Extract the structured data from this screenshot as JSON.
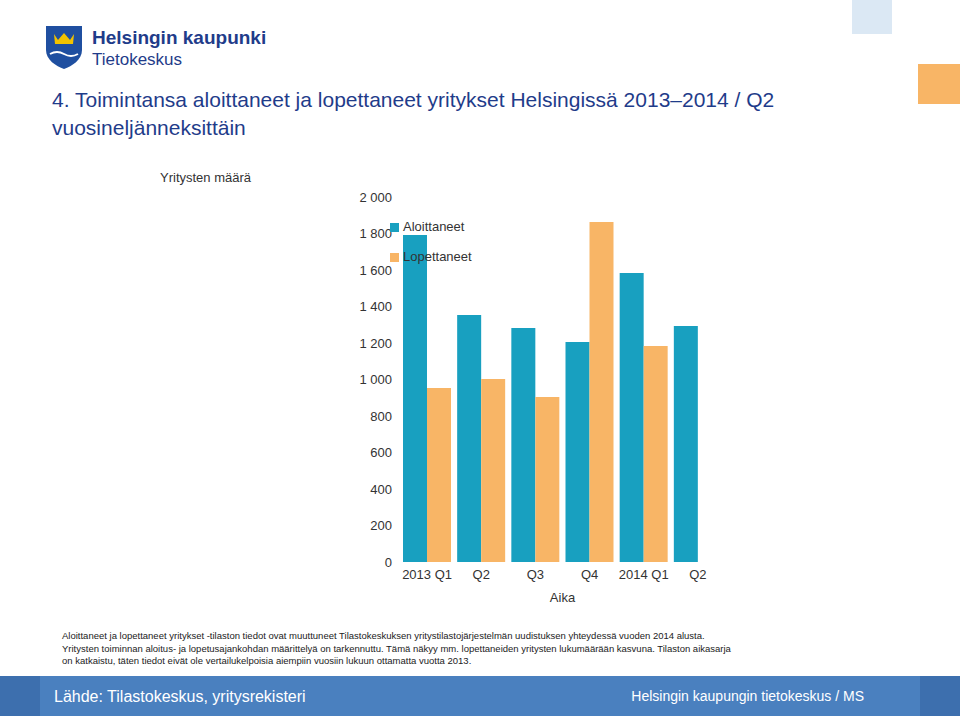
{
  "header": {
    "org": "Helsingin kaupunki",
    "unit": "Tietokeskus"
  },
  "chart_data": {
    "type": "bar",
    "title": "4. Toimintansa aloittaneet ja lopettaneet yritykset Helsingissä 2013–2014 / Q2 vuosineljänneksittäin",
    "y_label": "Yritysten määrä",
    "x_label": "Aika",
    "categories": [
      "2013 Q1",
      "Q2",
      "Q3",
      "Q4",
      "2014 Q1",
      "Q2"
    ],
    "series": [
      {
        "name": "Aloittaneet",
        "color": "#18a0c0",
        "values": [
          1792,
          1353,
          1282,
          1205,
          1584,
          1293
        ]
      },
      {
        "name": "Lopettaneet",
        "color": "#f8b566",
        "values": [
          953,
          1003,
          904,
          1863,
          1184,
          null
        ]
      }
    ],
    "ylim": [
      0,
      2000
    ],
    "yticks": [
      0,
      200,
      400,
      600,
      800,
      {
        "value": 1000,
        "label": "1 000"
      },
      {
        "value": 1200,
        "label": "1 200"
      },
      {
        "value": 1400,
        "label": "1 400"
      },
      {
        "value": 1600,
        "label": "1 600"
      },
      {
        "value": 1800,
        "label": "1 800"
      },
      {
        "value": 2000,
        "label": "2 000"
      }
    ],
    "grid": false,
    "legend": "top"
  },
  "notes": [
    "Aloittaneet ja lopettaneet yritykset -tilaston tiedot ovat muuttuneet Tilastokeskuksen yritystilastojärjestelmän uudistuksen yhteydessä vuoden 2014 alusta.",
    "Yritysten toiminnan aloitus- ja lopetusajankohdan määrittelyä on tarkennuttu. Tämä näkyy mm. lopettaneiden yritysten lukumäärään kasvuna. Tilaston aikasarja",
    "on katkaistu, täten tiedot eivät ole vertailukelpoisia aiempiin vuosiin lukuun ottamatta vuotta 2013."
  ],
  "footer": {
    "source": "Lähde: Tilastokeskus, yritysrekisteri",
    "credit": "Helsingin kaupungin tietokeskus / MS"
  }
}
